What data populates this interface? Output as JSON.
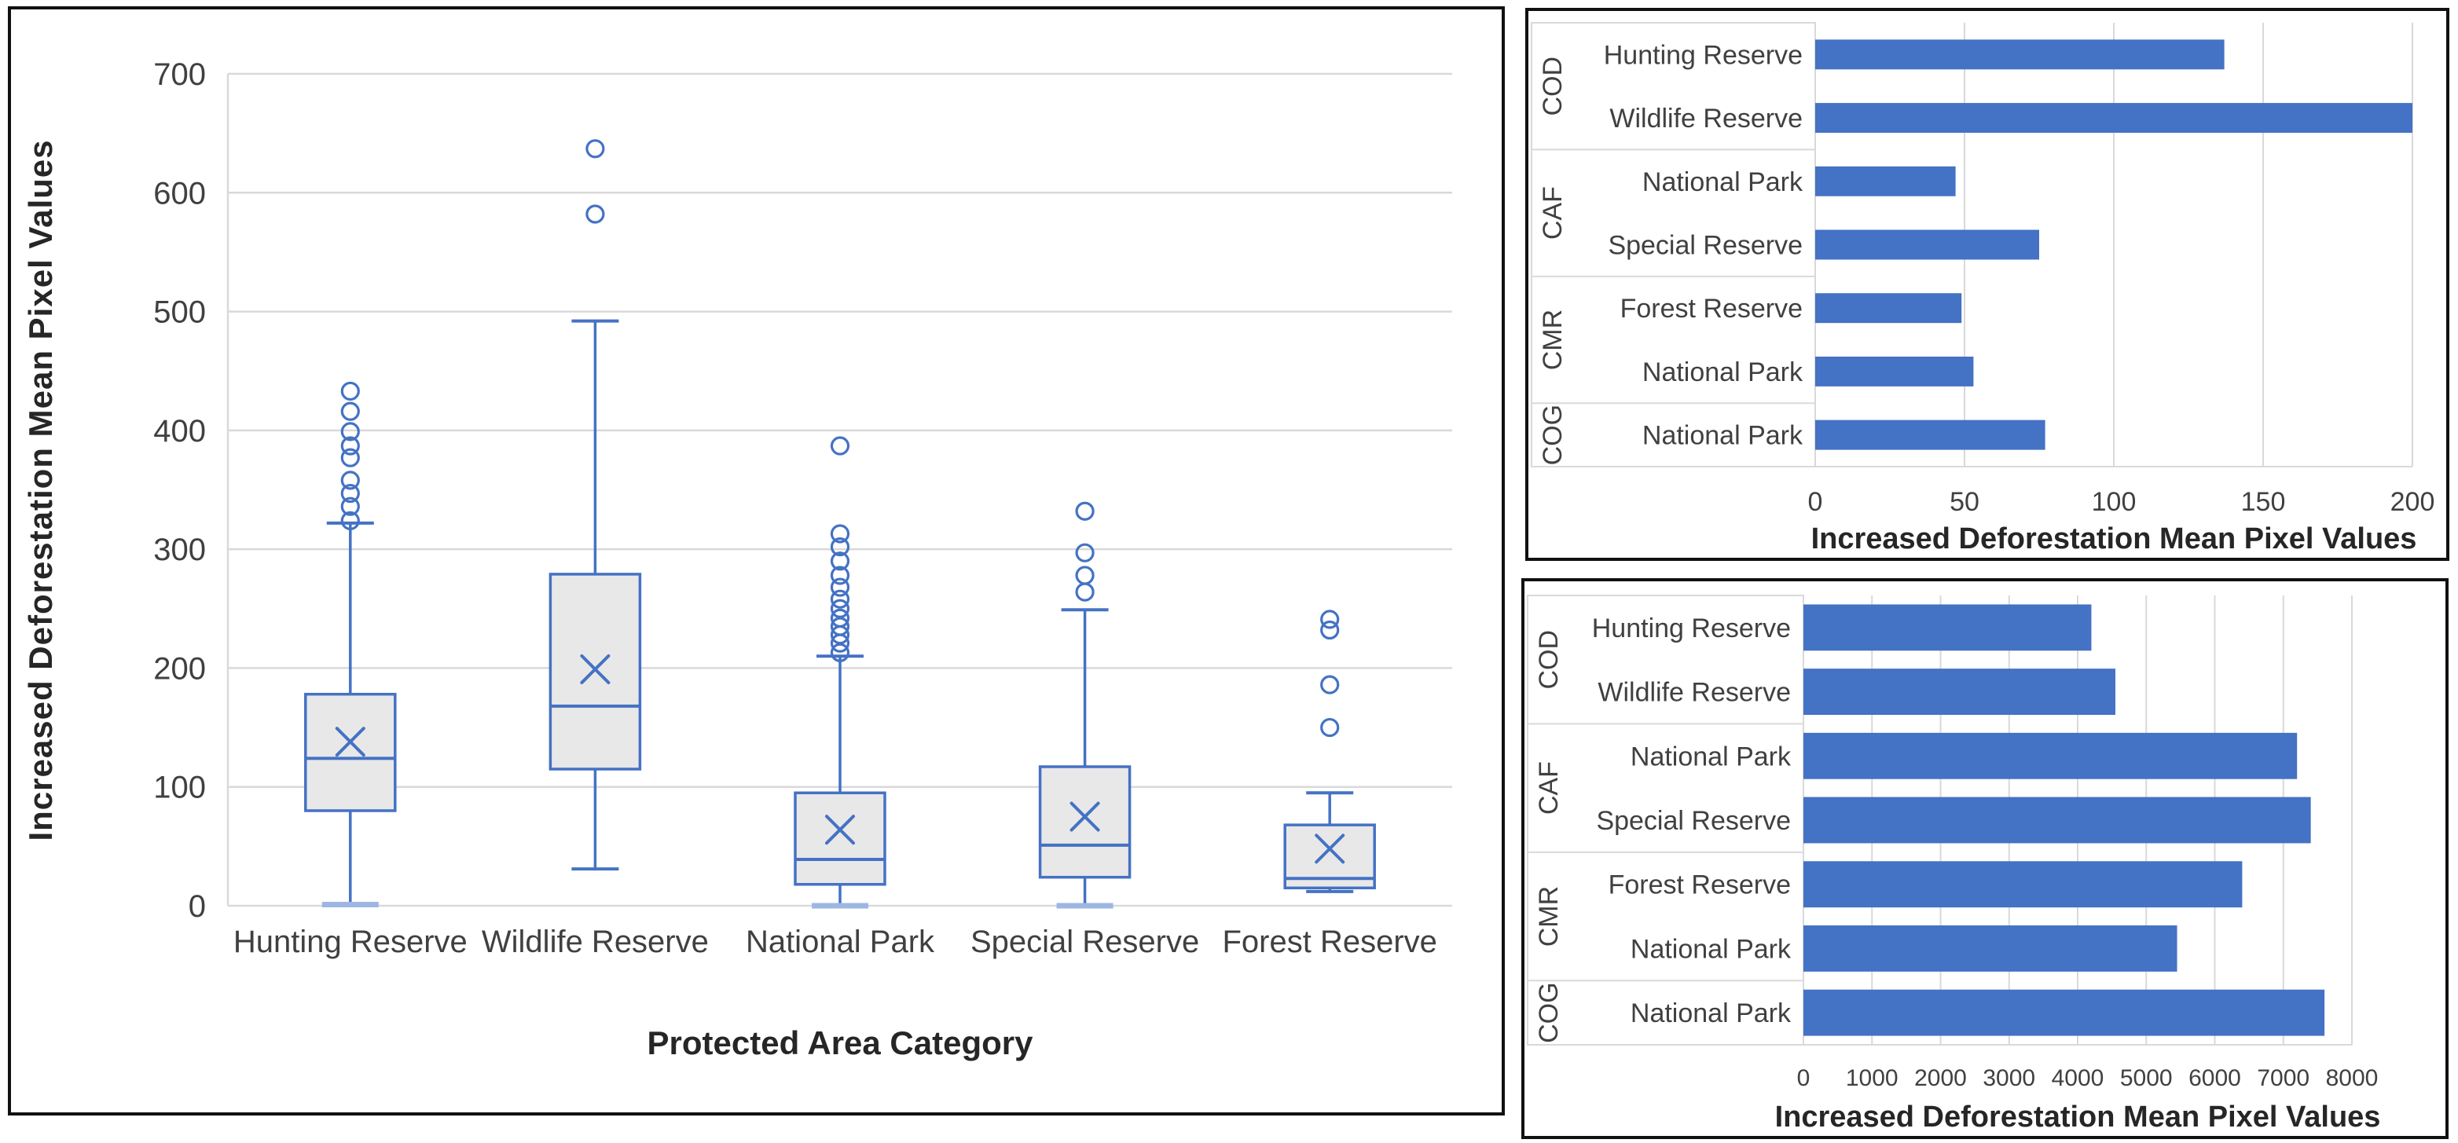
{
  "colors": {
    "accent_blue": "#4472C4",
    "box_fill": "#E9E8E8",
    "box_stroke": "#4472C4",
    "gridline": "#D9D9D9",
    "tick_text": "#404040",
    "title_text": "#262626",
    "light_cap": "#9DB7E2",
    "panel_border": "#111111",
    "background": "#FFFFFF"
  },
  "chart_data": [
    {
      "id": "boxplot",
      "type": "boxplot",
      "xlabel": "Protected Area Category",
      "ylabel": "Increased Deforestation Mean Pixel Values",
      "ylim": [
        0,
        700
      ],
      "yticks": [
        0,
        100,
        200,
        300,
        400,
        500,
        600,
        700
      ],
      "grid": "horizontal",
      "categories": [
        "Hunting Reserve",
        "Wildlife Reserve",
        "National Park",
        "Special Reserve",
        "Forest Reserve"
      ],
      "series": [
        {
          "category": "Hunting Reserve",
          "whisker_low": 1,
          "q1": 80,
          "median": 124,
          "q3": 178,
          "whisker_high": 322,
          "mean": 138,
          "outliers": [
            324,
            336,
            347,
            358,
            377,
            387,
            399,
            416,
            433
          ]
        },
        {
          "category": "Wildlife Reserve",
          "whisker_low": 31,
          "q1": 115,
          "median": 168,
          "q3": 279,
          "whisker_high": 492,
          "mean": 199,
          "outliers": [
            582,
            637
          ]
        },
        {
          "category": "National Park",
          "whisker_low": 0,
          "q1": 18,
          "median": 39,
          "q3": 95,
          "whisker_high": 210,
          "mean": 64,
          "outliers": [
            213,
            221,
            228,
            235,
            242,
            250,
            258,
            268,
            278,
            290,
            302,
            313,
            387
          ]
        },
        {
          "category": "Special Reserve",
          "whisker_low": 0,
          "q1": 24,
          "median": 51,
          "q3": 117,
          "whisker_high": 249,
          "mean": 75,
          "outliers": [
            264,
            278,
            297,
            332
          ]
        },
        {
          "category": "Forest Reserve",
          "whisker_low": 12,
          "q1": 15,
          "median": 23,
          "q3": 68,
          "whisker_high": 95,
          "mean": 48,
          "outliers": [
            150,
            186,
            232,
            241
          ]
        }
      ]
    },
    {
      "id": "bar-top",
      "type": "bar",
      "orientation": "horizontal",
      "xlabel": "Increased Deforestation Mean Pixel Values",
      "xlim": [
        0,
        200
      ],
      "xticks": [
        0,
        50,
        100,
        150,
        200
      ],
      "grid": "vertical",
      "groups": [
        {
          "label": "COD",
          "items": [
            {
              "label": "Hunting Reserve",
              "value": 137
            },
            {
              "label": "Wildlife Reserve",
              "value": 200
            }
          ]
        },
        {
          "label": "CAF",
          "items": [
            {
              "label": "National Park",
              "value": 47
            },
            {
              "label": "Special Reserve",
              "value": 75
            }
          ]
        },
        {
          "label": "CMR",
          "items": [
            {
              "label": "Forest Reserve",
              "value": 49
            },
            {
              "label": "National Park",
              "value": 53
            }
          ]
        },
        {
          "label": "COG",
          "items": [
            {
              "label": "National Park",
              "value": 77
            }
          ]
        }
      ]
    },
    {
      "id": "bar-bottom",
      "type": "bar",
      "orientation": "horizontal",
      "xlabel": "Increased Deforestation Mean Pixel Values",
      "xlim": [
        0,
        8000
      ],
      "xticks": [
        0,
        1000,
        2000,
        3000,
        4000,
        5000,
        6000,
        7000,
        8000
      ],
      "grid": "vertical",
      "groups": [
        {
          "label": "COD",
          "items": [
            {
              "label": "Hunting Reserve",
              "value": 4200
            },
            {
              "label": "Wildlife Reserve",
              "value": 4550
            }
          ]
        },
        {
          "label": "CAF",
          "items": [
            {
              "label": "National Park",
              "value": 7200
            },
            {
              "label": "Special Reserve",
              "value": 7400
            }
          ]
        },
        {
          "label": "CMR",
          "items": [
            {
              "label": "Forest Reserve",
              "value": 6400
            },
            {
              "label": "National Park",
              "value": 5450
            }
          ]
        },
        {
          "label": "COG",
          "items": [
            {
              "label": "National Park",
              "value": 7600
            }
          ]
        }
      ]
    }
  ]
}
